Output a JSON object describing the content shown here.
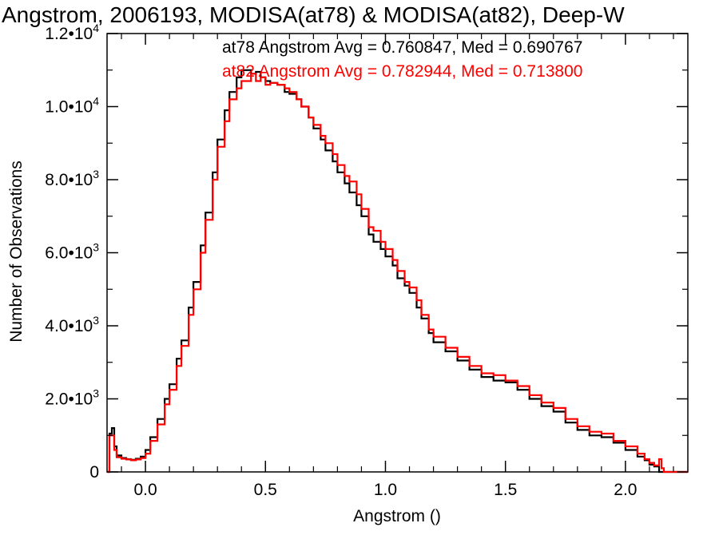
{
  "chart_data": {
    "type": "line",
    "style": "histogram-step",
    "title": "Angstrom, 2006193, MODISA(at78) & MODISA(at82), Deep-W",
    "xlabel": "Angstrom ()",
    "ylabel": "Number of Observations",
    "xlim": [
      -0.16,
      2.26
    ],
    "ylim": [
      0,
      12000
    ],
    "grid": false,
    "x_ticks": [
      {
        "value": 0.0,
        "label": "0.0"
      },
      {
        "value": 0.5,
        "label": "0.5"
      },
      {
        "value": 1.0,
        "label": "1.0"
      },
      {
        "value": 1.5,
        "label": "1.5"
      },
      {
        "value": 2.0,
        "label": "2.0"
      }
    ],
    "y_ticks": [
      {
        "value": 0,
        "mantissa": "0",
        "exponent": ""
      },
      {
        "value": 2000,
        "mantissa": "2.0•10",
        "exponent": "3"
      },
      {
        "value": 4000,
        "mantissa": "4.0•10",
        "exponent": "3"
      },
      {
        "value": 6000,
        "mantissa": "6.0•10",
        "exponent": "3"
      },
      {
        "value": 8000,
        "mantissa": "8.0•10",
        "exponent": "3"
      },
      {
        "value": 10000,
        "mantissa": "1.0•10",
        "exponent": "4"
      },
      {
        "value": 12000,
        "mantissa": "1.2•10",
        "exponent": "4"
      }
    ],
    "annotations": [
      {
        "text": "at78 Angstrom Avg = 0.760847, Med = 0.690767",
        "color": "#000000"
      },
      {
        "text": "at82 Angstrom Avg = 0.782944, Med = 0.713800",
        "color": "#ff0000"
      }
    ],
    "series": [
      {
        "color": "#000000",
        "x": [
          -0.16,
          -0.15,
          -0.14,
          -0.13,
          -0.12,
          -0.1,
          -0.08,
          -0.06,
          -0.04,
          -0.02,
          0.0,
          0.02,
          0.05,
          0.08,
          0.1,
          0.13,
          0.15,
          0.18,
          0.2,
          0.23,
          0.25,
          0.28,
          0.3,
          0.33,
          0.35,
          0.38,
          0.4,
          0.42,
          0.44,
          0.46,
          0.48,
          0.5,
          0.52,
          0.55,
          0.58,
          0.6,
          0.63,
          0.65,
          0.68,
          0.7,
          0.73,
          0.75,
          0.78,
          0.8,
          0.83,
          0.85,
          0.88,
          0.9,
          0.93,
          0.95,
          0.98,
          1.0,
          1.03,
          1.05,
          1.08,
          1.1,
          1.13,
          1.15,
          1.18,
          1.2,
          1.25,
          1.3,
          1.35,
          1.4,
          1.45,
          1.5,
          1.55,
          1.6,
          1.65,
          1.7,
          1.75,
          1.8,
          1.85,
          1.9,
          1.95,
          2.0,
          2.05,
          2.08,
          2.1,
          2.12,
          2.14,
          2.15,
          2.16,
          2.26
        ],
        "values": [
          0,
          1050,
          1200,
          700,
          450,
          380,
          350,
          330,
          360,
          420,
          600,
          950,
          1450,
          2000,
          2400,
          3100,
          3600,
          4500,
          5200,
          6200,
          7100,
          8200,
          9100,
          9900,
          10400,
          10800,
          11000,
          11000,
          10900,
          10950,
          10800,
          10700,
          10650,
          10600,
          10400,
          10350,
          10200,
          10000,
          9700,
          9400,
          9100,
          8800,
          8500,
          8200,
          7900,
          7650,
          7300,
          7000,
          6500,
          6300,
          6100,
          5900,
          5650,
          5300,
          5100,
          4900,
          4500,
          4200,
          3800,
          3550,
          3300,
          3050,
          2800,
          2600,
          2500,
          2450,
          2250,
          2000,
          1800,
          1650,
          1350,
          1150,
          1000,
          950,
          800,
          600,
          420,
          320,
          200,
          150,
          0,
          0,
          0,
          0
        ]
      },
      {
        "color": "#ff0000",
        "x": [
          -0.16,
          -0.15,
          -0.14,
          -0.13,
          -0.12,
          -0.1,
          -0.08,
          -0.06,
          -0.04,
          -0.02,
          0.0,
          0.02,
          0.05,
          0.08,
          0.1,
          0.13,
          0.15,
          0.18,
          0.2,
          0.23,
          0.25,
          0.28,
          0.3,
          0.33,
          0.35,
          0.38,
          0.4,
          0.42,
          0.44,
          0.46,
          0.48,
          0.5,
          0.52,
          0.55,
          0.58,
          0.6,
          0.63,
          0.65,
          0.68,
          0.7,
          0.73,
          0.75,
          0.78,
          0.8,
          0.83,
          0.85,
          0.88,
          0.9,
          0.93,
          0.95,
          0.98,
          1.0,
          1.03,
          1.05,
          1.08,
          1.1,
          1.13,
          1.15,
          1.18,
          1.2,
          1.25,
          1.3,
          1.35,
          1.4,
          1.45,
          1.5,
          1.55,
          1.6,
          1.65,
          1.7,
          1.75,
          1.8,
          1.85,
          1.9,
          1.95,
          2.0,
          2.05,
          2.08,
          2.1,
          2.12,
          2.14,
          2.15,
          2.16,
          2.26
        ],
        "values": [
          0,
          1000,
          1000,
          600,
          400,
          360,
          340,
          320,
          340,
          380,
          500,
          850,
          1300,
          1850,
          2250,
          2900,
          3450,
          4300,
          5000,
          6000,
          6900,
          8000,
          8900,
          9600,
          10200,
          10500,
          10700,
          10700,
          10900,
          10700,
          10800,
          10600,
          10650,
          10600,
          10500,
          10400,
          10200,
          10000,
          9700,
          9500,
          9200,
          9000,
          8700,
          8400,
          8100,
          7950,
          7600,
          7200,
          6700,
          6600,
          6300,
          6100,
          5800,
          5500,
          5200,
          5050,
          4700,
          4300,
          3900,
          3700,
          3400,
          3150,
          2900,
          2700,
          2650,
          2500,
          2350,
          2100,
          1900,
          1750,
          1450,
          1250,
          1100,
          1050,
          850,
          700,
          500,
          350,
          250,
          180,
          350,
          100,
          0,
          0
        ]
      }
    ]
  }
}
